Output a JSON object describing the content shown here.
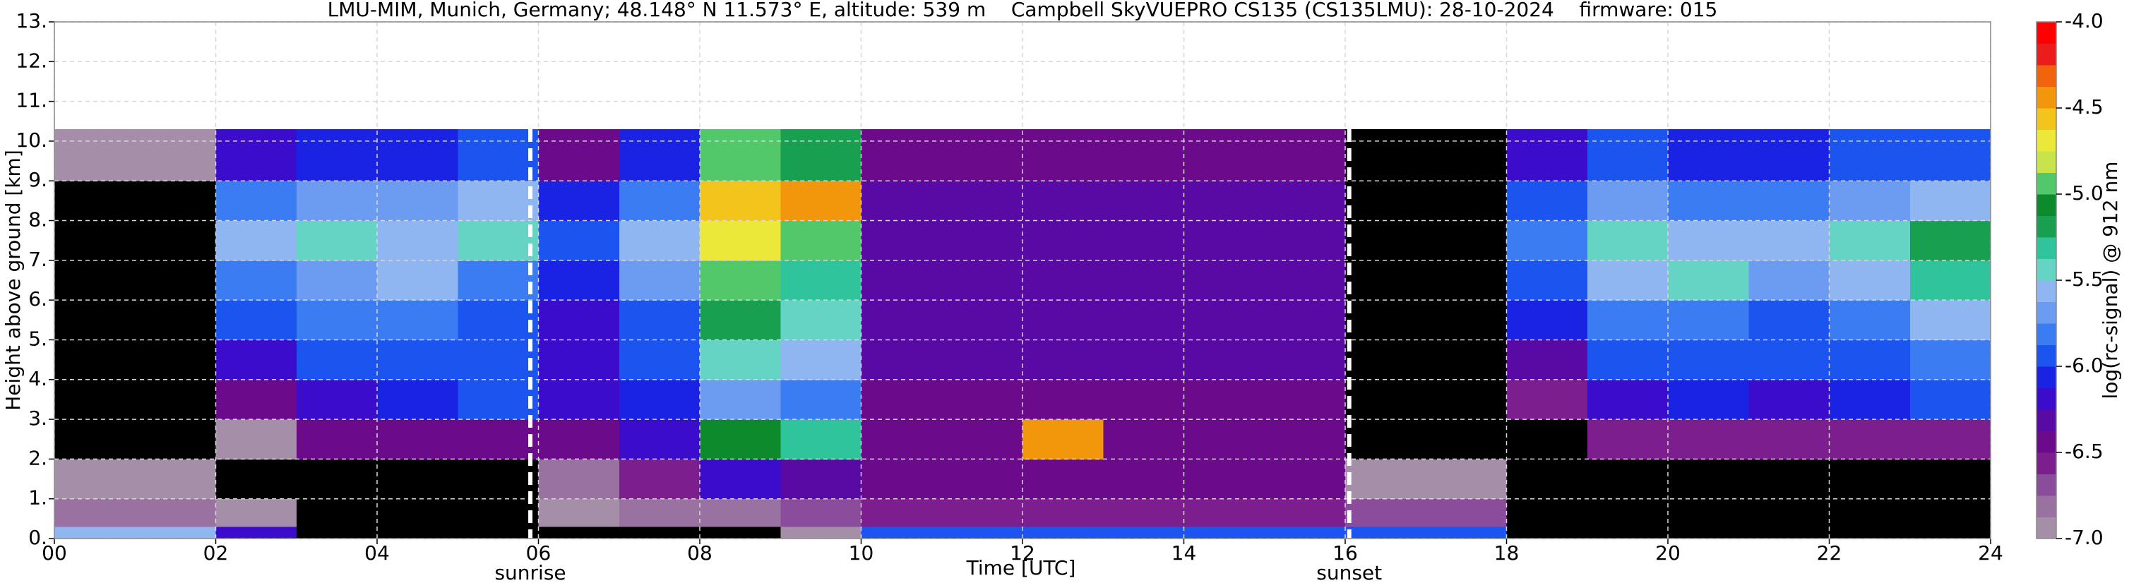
{
  "chart_data": {
    "type": "heatmap",
    "title": "LMU-MIM, Munich, Germany; 48.148° N 11.573° E, altitude: 539 m    Campbell SkyVUEPRO CS135 (CS135LMU): 28-10-2024    firmware: 015",
    "x_label": "Time [UTC]",
    "y_label": "Height above ground [km]",
    "colorbar_label": "log(rc-signal) @ 912 nm",
    "xlim": [
      0,
      24
    ],
    "ylim": [
      0,
      13
    ],
    "xticks": [
      {
        "value": 0,
        "label": "00"
      },
      {
        "value": 2,
        "label": "02"
      },
      {
        "value": 4,
        "label": "04"
      },
      {
        "value": 6,
        "label": "06"
      },
      {
        "value": 8,
        "label": "08"
      },
      10,
      12,
      14,
      16,
      18,
      20,
      22,
      24
    ],
    "yticks": [
      {
        "value": 0,
        "label": "0."
      },
      {
        "value": 1,
        "label": "1."
      },
      {
        "value": 2,
        "label": "2."
      },
      {
        "value": 3,
        "label": "3."
      },
      {
        "value": 4,
        "label": "4."
      },
      {
        "value": 5,
        "label": "5."
      },
      {
        "value": 6,
        "label": "6."
      },
      {
        "value": 7,
        "label": "7."
      },
      {
        "value": 8,
        "label": "8."
      },
      {
        "value": 9,
        "label": "9."
      },
      {
        "value": 10,
        "label": "10."
      },
      {
        "value": 11,
        "label": "11."
      },
      {
        "value": 12,
        "label": "12."
      },
      {
        "value": 13,
        "label": "13."
      }
    ],
    "grid": true,
    "annotations": [
      {
        "x": 5.9,
        "label": "sunrise"
      },
      {
        "x": 16.05,
        "label": "sunset"
      }
    ],
    "clim": [
      -7,
      -4
    ],
    "colorbar_ticks": [
      {
        "value": -7,
        "label": "-7.0"
      },
      -6.5,
      {
        "value": -6,
        "label": "-6.0"
      },
      -5.5,
      {
        "value": -5,
        "label": "-5.0"
      },
      -4.5,
      {
        "value": -4,
        "label": "-4.0"
      }
    ],
    "under_color": "#000000",
    "colors": [
      "#a48ea8",
      "#9a72a2",
      "#8c4c9c",
      "#7c1e8e",
      "#6c0a8c",
      "#5a0aa4",
      "#3c0ccc",
      "#1a22e4",
      "#1c54f0",
      "#3c7cf2",
      "#6c9cf2",
      "#90b6f2",
      "#66d4c4",
      "#30c49c",
      "#18a050",
      "#0c8a2c",
      "#52c86a",
      "#c8e44a",
      "#ece83a",
      "#f2c41c",
      "#f2960c",
      "#f2640c",
      "#ec1c1c",
      "#ff0000"
    ],
    "top_colors": [],
    "x_edges": [
      0,
      1,
      2,
      3,
      4,
      5,
      6,
      7,
      8,
      9,
      10,
      11,
      12,
      13,
      14,
      15,
      16,
      17,
      18,
      19,
      20,
      21,
      22,
      23,
      24
    ],
    "y_edges": [
      0,
      0.3,
      1,
      2,
      3,
      4,
      5,
      6,
      7,
      8,
      9,
      10.3
    ],
    "z": [
      [
        -5.6,
        -5.6,
        -6.2,
        -7.3,
        -7.3,
        -7.3,
        -7.2,
        -7.2,
        -7.1,
        -6.9,
        -6.0,
        -5.9,
        -5.9,
        -6.0,
        -6.0,
        -6.0,
        -5.9,
        -5.9,
        -7.2,
        -7.3,
        -7.3,
        -7.3,
        -7.3,
        -7.2
      ],
      [
        -6.8,
        -6.8,
        -7.0,
        -7.3,
        -7.3,
        -7.3,
        -6.9,
        -6.8,
        -6.8,
        -6.7,
        -6.6,
        -6.6,
        -6.6,
        -6.6,
        -6.6,
        -6.6,
        -6.7,
        -6.7,
        -7.2,
        -7.3,
        -7.3,
        -7.3,
        -7.3,
        -7.3
      ],
      [
        -6.95,
        -6.95,
        -7.1,
        -7.3,
        -7.3,
        -7.3,
        -6.8,
        -6.6,
        -6.2,
        -6.3,
        -6.5,
        -6.5,
        -6.5,
        -6.5,
        -6.5,
        -6.5,
        -6.9,
        -6.9,
        -7.3,
        -7.3,
        -7.3,
        -7.3,
        -7.3,
        -7.3
      ],
      [
        -7.3,
        -7.3,
        -6.9,
        -6.5,
        -6.5,
        -6.5,
        -6.4,
        -6.2,
        -5.1,
        -5.3,
        -6.4,
        -6.4,
        -4.4,
        -6.4,
        -6.4,
        -6.4,
        -7.3,
        -7.3,
        -7.2,
        -6.6,
        -6.6,
        -6.6,
        -6.6,
        -6.6
      ],
      [
        -7.2,
        -7.2,
        -6.4,
        -6.2,
        -6.1,
        -6.0,
        -6.2,
        -6.1,
        -5.7,
        -5.8,
        -6.4,
        -6.4,
        -6.4,
        -6.4,
        -6.4,
        -6.4,
        -7.3,
        -7.3,
        -6.6,
        -6.2,
        -6.1,
        -6.2,
        -6.1,
        -6.0
      ],
      [
        -7.2,
        -7.2,
        -6.2,
        -6.0,
        -5.9,
        -6.0,
        -6.2,
        -5.9,
        -5.4,
        -5.6,
        -6.3,
        -6.3,
        -6.3,
        -6.3,
        -6.3,
        -6.3,
        -7.2,
        -7.2,
        -6.3,
        -6.0,
        -5.9,
        -6.0,
        -5.9,
        -5.8
      ],
      [
        -7.2,
        -7.2,
        -6.0,
        -5.8,
        -5.8,
        -5.9,
        -6.2,
        -5.9,
        -5.2,
        -5.5,
        -6.3,
        -6.3,
        -6.3,
        -6.3,
        -6.3,
        -6.3,
        -7.2,
        -7.2,
        -6.1,
        -5.8,
        -5.8,
        -5.9,
        -5.8,
        -5.6
      ],
      [
        -7.1,
        -7.2,
        -5.8,
        -5.7,
        -5.6,
        -5.8,
        -6.1,
        -5.7,
        -4.9,
        -5.3,
        -6.3,
        -6.3,
        -6.3,
        -6.3,
        -6.3,
        -6.3,
        -7.2,
        -7.2,
        -5.9,
        -5.6,
        -5.5,
        -5.7,
        -5.6,
        -5.3
      ],
      [
        -7.2,
        -7.2,
        -5.6,
        -5.5,
        -5.6,
        -5.5,
        -6.0,
        -5.6,
        -4.7,
        -4.9,
        -6.3,
        -6.3,
        -6.3,
        -6.3,
        -6.3,
        -6.3,
        -7.2,
        -7.2,
        -5.8,
        -5.5,
        -5.6,
        -5.6,
        -5.5,
        -5.2
      ],
      [
        -7.2,
        -7.2,
        -5.8,
        -5.7,
        -5.7,
        -5.6,
        -6.1,
        -5.8,
        -4.6,
        -4.4,
        -6.3,
        -6.3,
        -6.3,
        -6.3,
        -6.3,
        -6.3,
        -7.2,
        -7.2,
        -5.9,
        -5.7,
        -5.8,
        -5.8,
        -5.7,
        -5.6
      ],
      [
        -6.9,
        -6.9,
        -6.2,
        -6.1,
        -6.1,
        -6.0,
        -6.4,
        -6.1,
        -4.9,
        -5.2,
        -6.4,
        -6.4,
        -6.4,
        -6.4,
        -6.4,
        -6.4,
        -7.2,
        -7.2,
        -6.2,
        -6.0,
        -6.1,
        -6.1,
        -6.0,
        -5.9
      ]
    ]
  }
}
